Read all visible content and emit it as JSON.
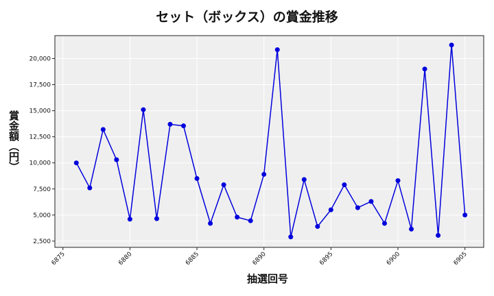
{
  "chart_data": {
    "type": "line",
    "title": "セット（ボックス）の賞金推移",
    "xlabel": "抽選回号",
    "ylabel": "賞金額（円）",
    "x": [
      6876,
      6877,
      6878,
      6879,
      6880,
      6881,
      6882,
      6883,
      6884,
      6885,
      6886,
      6887,
      6888,
      6889,
      6890,
      6891,
      6892,
      6893,
      6894,
      6895,
      6896,
      6897,
      6898,
      6899,
      6900,
      6901,
      6902,
      6903,
      6904,
      6905
    ],
    "series": [
      {
        "name": "セット（ボックス）",
        "color": "#0000dd",
        "values": [
          10000,
          7600,
          13200,
          10300,
          4600,
          15100,
          4650,
          13700,
          13550,
          8500,
          4200,
          7900,
          4800,
          4450,
          8900,
          20850,
          2900,
          8400,
          3900,
          5500,
          7900,
          5700,
          6300,
          4200,
          8300,
          3650,
          19000,
          3050,
          21300,
          5000
        ]
      }
    ],
    "xticks": [
      6875,
      6880,
      6885,
      6890,
      6895,
      6900,
      6905
    ],
    "yticks": [
      2500,
      5000,
      7500,
      10000,
      12500,
      15000,
      17500,
      20000
    ],
    "ytick_labels": [
      "2,500",
      "5,000",
      "7,500",
      "10,000",
      "12,500",
      "15,000",
      "17,500",
      "20,000"
    ],
    "xlim": [
      6874.4,
      6906.4
    ],
    "ylim": [
      1900,
      22200
    ],
    "grid": true,
    "legend": "none",
    "plot_bg": "#efefef",
    "grid_color": "#ffffff"
  }
}
